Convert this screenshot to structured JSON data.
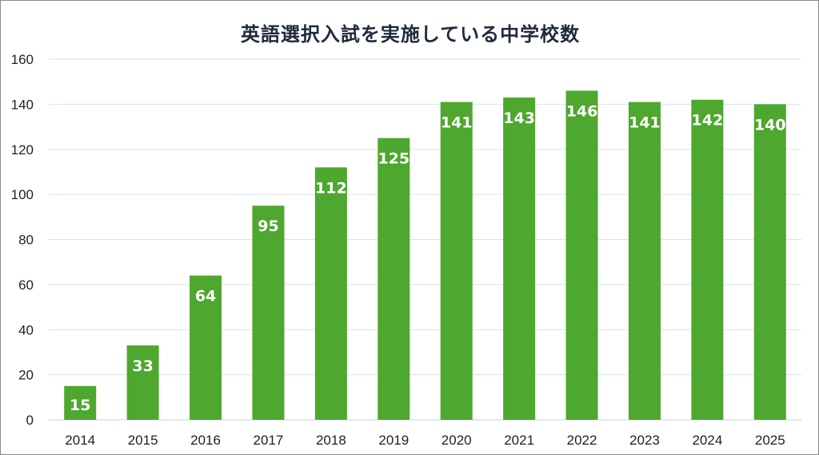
{
  "chart_data": {
    "type": "bar",
    "title": "英語選択入試を実施している中学校数",
    "xlabel": "",
    "ylabel": "",
    "categories": [
      "2014",
      "2015",
      "2016",
      "2017",
      "2018",
      "2019",
      "2020",
      "2021",
      "2022",
      "2023",
      "2024",
      "2025"
    ],
    "values": [
      15,
      33,
      64,
      95,
      112,
      125,
      141,
      143,
      146,
      141,
      142,
      140
    ],
    "ylim": [
      0,
      160
    ],
    "yticks": [
      0,
      20,
      40,
      60,
      80,
      100,
      120,
      140,
      160
    ],
    "grid": true,
    "legend": "none",
    "bar_color": "#4ea72e",
    "label_color": "#ffffff"
  }
}
